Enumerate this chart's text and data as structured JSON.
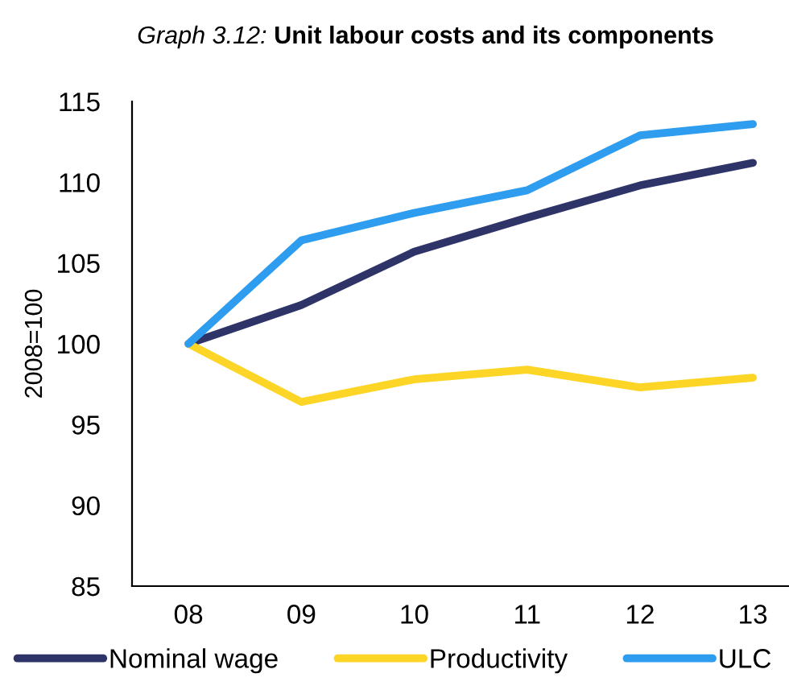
{
  "chart_data": {
    "type": "line",
    "title": "Graph 3.12: Unit labour costs and its components",
    "ylabel": "2008=100",
    "categories": [
      "08",
      "09",
      "10",
      "11",
      "12",
      "13"
    ],
    "series": [
      {
        "name": "Nominal wage",
        "color": "#2e3468",
        "values": [
          100,
          102.4,
          105.7,
          107.8,
          109.8,
          111.2
        ]
      },
      {
        "name": "Productivity",
        "color": "#fdd526",
        "values": [
          100,
          96.4,
          97.8,
          98.4,
          97.3,
          97.9
        ]
      },
      {
        "name": "ULC",
        "color": "#2e9df0",
        "values": [
          100,
          106.4,
          108.1,
          109.5,
          112.9,
          113.6
        ]
      }
    ],
    "ylim": [
      85,
      115
    ],
    "yticks": [
      85,
      90,
      95,
      100,
      105,
      110,
      115
    ],
    "grid": false,
    "legend": "bottom",
    "marker": "none",
    "line_style": "solid"
  }
}
